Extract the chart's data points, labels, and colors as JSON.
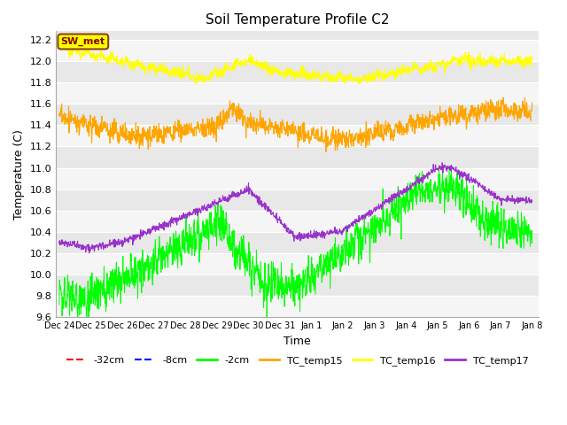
{
  "title": "Soil Temperature Profile C2",
  "xlabel": "Time",
  "ylabel": "Temperature (C)",
  "ylim": [
    9.6,
    12.28
  ],
  "yticks": [
    9.6,
    9.8,
    10.0,
    10.2,
    10.4,
    10.6,
    10.8,
    11.0,
    11.2,
    11.4,
    11.6,
    11.8,
    12.0,
    12.2
  ],
  "legend_entries": [
    "-32cm",
    "-8cm",
    "-2cm",
    "TC_temp15",
    "TC_temp16",
    "TC_temp17"
  ],
  "legend_colors": [
    "#ff0000",
    "#0000ff",
    "#00ff00",
    "#ffa500",
    "#ffff00",
    "#9932cc"
  ],
  "legend_linestyles": [
    "--",
    "--",
    "-",
    "-",
    "-",
    "-"
  ],
  "sw_met_label": "SW_met",
  "xtick_labels": [
    "Dec 24",
    "Dec 25",
    "Dec 26",
    "Dec 27",
    "Dec 28",
    "Dec 29",
    "Dec 30",
    "Dec 31",
    "Jan 1",
    "Jan 2",
    "Jan 3",
    "Jan 4",
    "Jan 5",
    "Jan 6",
    "Jan 7",
    "Jan 8"
  ],
  "xtick_positions": [
    0,
    1,
    2,
    3,
    4,
    5,
    6,
    7,
    8,
    9,
    10,
    11,
    12,
    13,
    14,
    15
  ]
}
